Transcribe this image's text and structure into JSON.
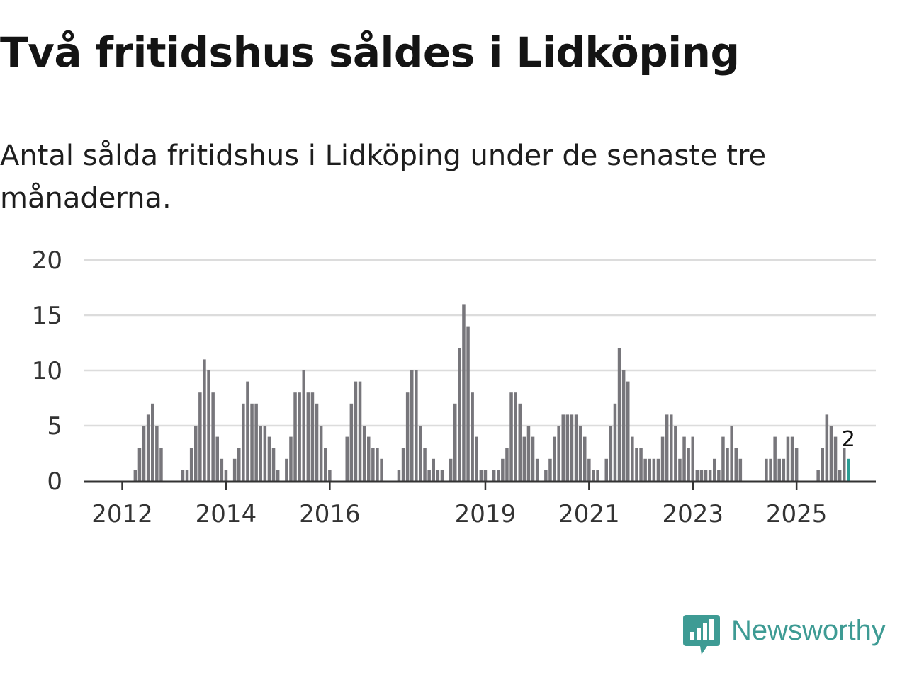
{
  "header": {
    "title": "Två fritidshus såldes i Lidköping",
    "subtitle": "Antal sålda fritidshus i Lidköping under de senaste tre månaderna."
  },
  "brand": {
    "name": "Newsworthy",
    "color": "#3e9b94",
    "icon": "newsworthy-logo-icon"
  },
  "colors": {
    "bar": "#77767b",
    "highlight": "#2a9d94",
    "grid": "#dcdcdc",
    "axis": "#333333"
  },
  "chart_data": {
    "type": "bar",
    "title": "Två fritidshus såldes i Lidköping",
    "subtitle": "Antal sålda fritidshus i Lidköping under de senaste tre månaderna.",
    "xlabel": "",
    "ylabel": "",
    "ylim": [
      0,
      20
    ],
    "yticks": [
      0,
      5,
      10,
      15,
      20
    ],
    "x_start": "2011-05",
    "interval": "month",
    "xtick_labels": [
      "2012",
      "2014",
      "2016",
      "2019",
      "2021",
      "2023",
      "2025"
    ],
    "xtick_month_index": [
      8,
      32,
      56,
      92,
      116,
      140,
      164
    ],
    "values": [
      0,
      0,
      0,
      0,
      0,
      0,
      0,
      0,
      0,
      0,
      0,
      1,
      3,
      5,
      6,
      7,
      5,
      3,
      0,
      0,
      0,
      0,
      1,
      1,
      3,
      5,
      8,
      11,
      10,
      8,
      4,
      2,
      1,
      0,
      2,
      3,
      7,
      9,
      7,
      7,
      5,
      5,
      4,
      3,
      1,
      0,
      2,
      4,
      8,
      8,
      10,
      8,
      8,
      7,
      5,
      3,
      1,
      0,
      0,
      0,
      4,
      7,
      9,
      9,
      5,
      4,
      3,
      3,
      2,
      0,
      0,
      0,
      1,
      3,
      8,
      10,
      10,
      5,
      3,
      1,
      2,
      1,
      1,
      0,
      2,
      7,
      12,
      16,
      14,
      8,
      4,
      1,
      1,
      0,
      1,
      1,
      2,
      3,
      8,
      8,
      7,
      4,
      5,
      4,
      2,
      0,
      1,
      2,
      4,
      5,
      6,
      6,
      6,
      6,
      5,
      4,
      2,
      1,
      1,
      0,
      2,
      5,
      7,
      12,
      10,
      9,
      4,
      3,
      3,
      2,
      2,
      2,
      2,
      4,
      6,
      6,
      5,
      2,
      4,
      3,
      4,
      1,
      1,
      1,
      1,
      2,
      1,
      4,
      3,
      5,
      3,
      2,
      0,
      0,
      0,
      0,
      0,
      2,
      2,
      4,
      2,
      2,
      4,
      4,
      3,
      0,
      0,
      0,
      0,
      1,
      3,
      6,
      5,
      4,
      1,
      3,
      2
    ],
    "highlight_last": true,
    "annotation": {
      "text": "2",
      "target": "last-bar"
    }
  }
}
